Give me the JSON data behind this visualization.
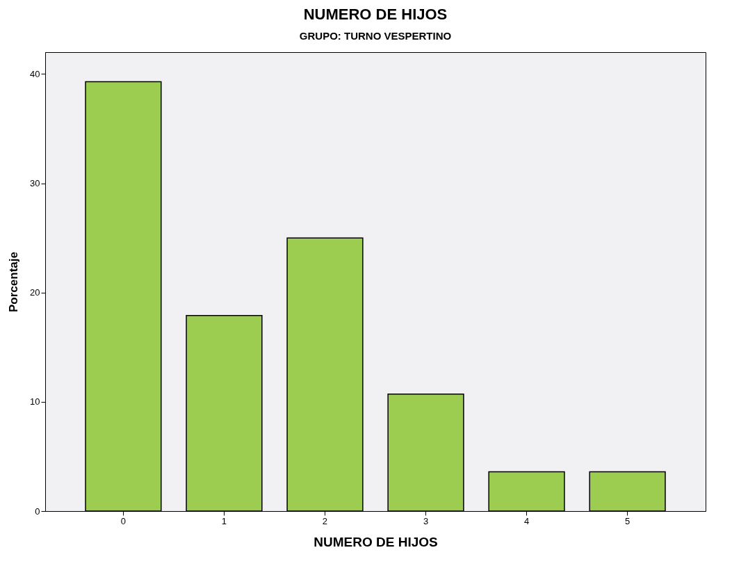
{
  "chart_data": {
    "type": "bar",
    "title": "NUMERO DE HIJOS",
    "subtitle": "GRUPO: TURNO VESPERTINO",
    "xlabel": "NUMERO DE HIJOS",
    "ylabel": "Porcentaje",
    "categories": [
      "0",
      "1",
      "2",
      "3",
      "4",
      "5"
    ],
    "values": [
      39.3,
      17.9,
      25.0,
      10.7,
      3.6,
      3.6
    ],
    "color": "#9ccc50",
    "ylim": [
      0,
      42
    ],
    "yticks": [
      0,
      10,
      20,
      30,
      40
    ],
    "grid": false
  }
}
